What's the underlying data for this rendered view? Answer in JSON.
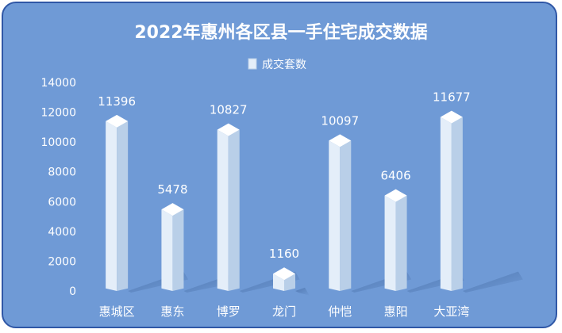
{
  "chart_data": {
    "type": "bar",
    "title": "2022年惠州各区县一手住宅成交数据",
    "legend": {
      "label": "成交套数",
      "position": "top"
    },
    "categories": [
      "惠城区",
      "惠东",
      "博罗",
      "龙门",
      "仲恺",
      "惠阳",
      "大亚湾"
    ],
    "series": [
      {
        "name": "成交套数",
        "values": [
          11396,
          5478,
          10827,
          1160,
          10097,
          6406,
          11677
        ]
      }
    ],
    "ylim": [
      0,
      14000
    ],
    "yticks": [
      0,
      2000,
      4000,
      6000,
      8000,
      10000,
      12000,
      14000
    ],
    "grid": false,
    "colors": {
      "background": "#6f9ad6",
      "border": "#2f57a6",
      "bar_front": "#e4eef9",
      "bar_side": "#b9cfe8",
      "bar_top": "#ffffff"
    }
  }
}
